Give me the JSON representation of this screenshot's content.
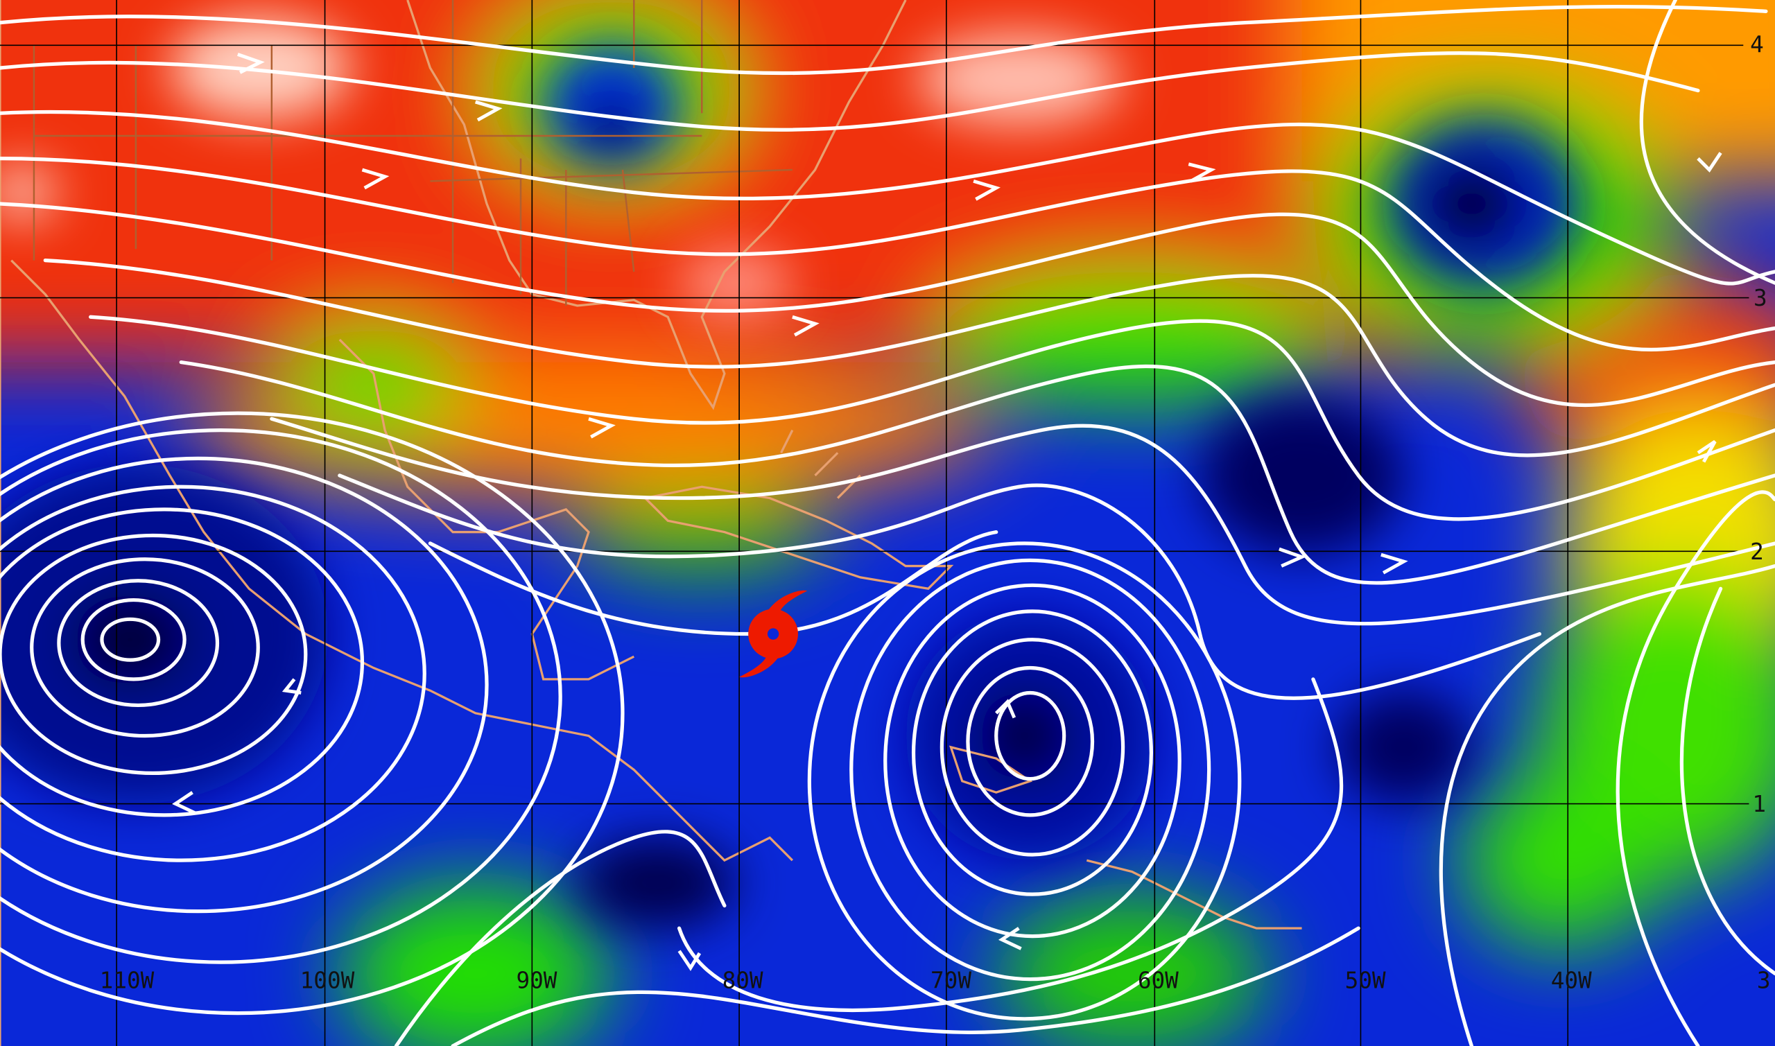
{
  "map": {
    "type": "streamline wind analysis over color-shaded field",
    "colors": {
      "high": "#f02a0a",
      "mid_high": "#ff8a00",
      "mid": "#f4e600",
      "mid_low": "#22e000",
      "low": "#0020f0",
      "lowest": "#000040",
      "streamlines": "#ffffff",
      "coastline": "#e8a070",
      "grid": "#000000",
      "storm_symbol": "#ee1a00"
    },
    "longitude_labels": [
      "110W",
      "100W",
      "90W",
      "80W",
      "70W",
      "60W",
      "50W",
      "40W",
      "3"
    ],
    "latitude_labels": [
      "4",
      "3",
      "2",
      "1"
    ],
    "storm_icon": "hurricane-symbol-icon"
  }
}
